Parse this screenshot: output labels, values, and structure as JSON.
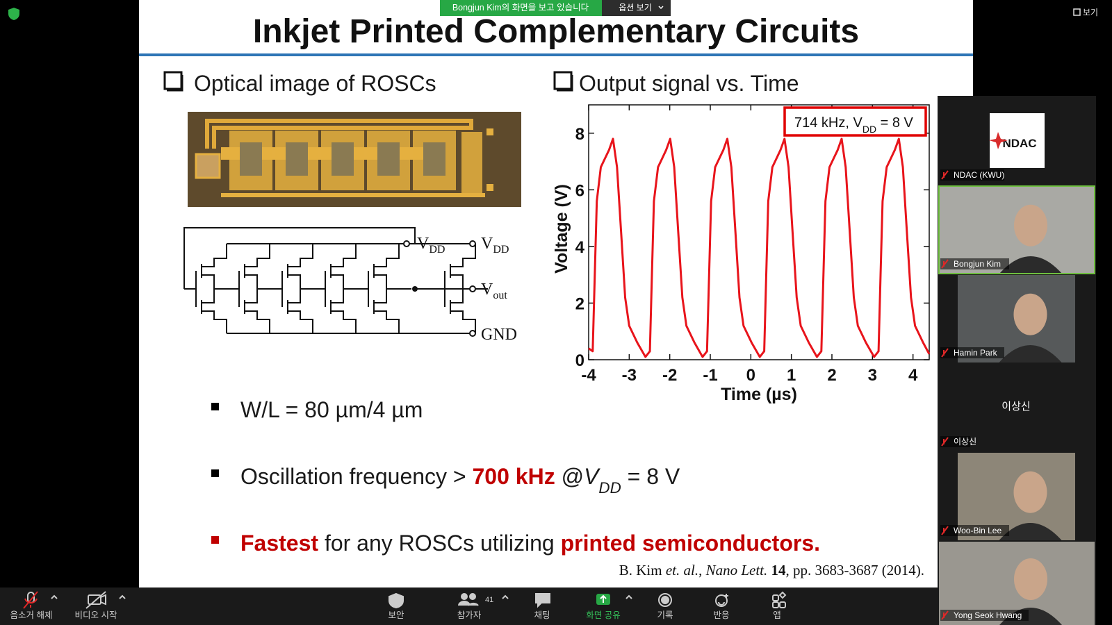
{
  "banner": {
    "sharing": "Bongjun  Kim의 화면을 보고 있습니다",
    "options": "옵션 보기"
  },
  "view_button": "보기",
  "slide": {
    "title": "Inkjet Printed Complementary Circuits",
    "section_left": "Optical image of ROSCs",
    "section_right": "Output signal vs. Time",
    "circuit_labels": {
      "vdd_node": "V",
      "vdd_node_sub": "DD",
      "vdd": "V",
      "vdd_sub": "DD",
      "vout": "V",
      "vout_sub": "out",
      "gnd": "GND"
    },
    "bullets": [
      {
        "marker_color": "#000000",
        "segments": [
          {
            "text": "W/L = 80 µm/4 µm",
            "color": "#1a1a1a"
          }
        ]
      },
      {
        "marker_color": "#000000",
        "segments": [
          {
            "text": "Oscillation frequency > ",
            "color": "#1a1a1a"
          },
          {
            "text": "700 kHz",
            "color": "#c00000",
            "bold": true
          },
          {
            "text": " @",
            "color": "#1a1a1a"
          },
          {
            "text": "V",
            "color": "#1a1a1a",
            "italic": true
          },
          {
            "text": "DD",
            "color": "#1a1a1a",
            "italic": true,
            "sub": true
          },
          {
            "text": " = 8 V",
            "color": "#1a1a1a"
          }
        ]
      },
      {
        "marker_color": "#c00000",
        "segments": [
          {
            "text": "Fastest",
            "color": "#c00000",
            "bold": true
          },
          {
            "text": " for any ROSCs utilizing ",
            "color": "#1a1a1a"
          },
          {
            "text": "printed semiconductors.",
            "color": "#c00000",
            "bold": true
          }
        ]
      }
    ],
    "citation": [
      {
        "text": "B. Kim "
      },
      {
        "text": "et. al.",
        "italic": true
      },
      {
        "text": ", "
      },
      {
        "text": "Nano Lett.",
        "italic": true
      },
      {
        "text": " "
      },
      {
        "text": "14",
        "bold": true
      },
      {
        "text": ", pp. 3683-3687 (2014)."
      }
    ]
  },
  "chart_data": {
    "type": "line",
    "x_label": "Time (µs)",
    "y_label": "Voltage (V)",
    "annotation": {
      "text": "714 kHz, V",
      "sub": "DD",
      "rest": " = 8 V",
      "color": "#e00000"
    },
    "xlim": [
      -4,
      4.4
    ],
    "ylim": [
      0,
      9
    ],
    "xticks": [
      -4,
      -3,
      -2,
      -1,
      0,
      1,
      2,
      3,
      4
    ],
    "yticks": [
      0,
      2,
      4,
      6,
      8
    ],
    "x": [
      -4.0,
      -3.9,
      -3.85,
      -3.8,
      -3.7,
      -3.6,
      -3.5,
      -3.4,
      -3.3,
      -3.2,
      -3.1,
      -3.0,
      -2.8,
      -2.6,
      -2.49,
      -2.44,
      -2.39,
      -2.29,
      -2.19,
      -2.09,
      -1.99,
      -1.89,
      -1.79,
      -1.69,
      -1.59,
      -1.39,
      -1.19,
      -1.08,
      -1.03,
      -0.98,
      -0.88,
      -0.78,
      -0.68,
      -0.58,
      -0.48,
      -0.38,
      -0.28,
      -0.18,
      0.02,
      0.22,
      0.33,
      0.38,
      0.43,
      0.53,
      0.63,
      0.73,
      0.83,
      0.93,
      1.03,
      1.13,
      1.23,
      1.43,
      1.63,
      1.74,
      1.79,
      1.84,
      1.94,
      2.04,
      2.14,
      2.24,
      2.34,
      2.44,
      2.54,
      2.64,
      2.84,
      3.04,
      3.15,
      3.2,
      3.25,
      3.35,
      3.45,
      3.55,
      3.65,
      3.75,
      3.85,
      3.95,
      4.05,
      4.25,
      4.4
    ],
    "series": [
      {
        "name": "Output",
        "color": "#e8141b",
        "values": [
          0.4,
          0.3,
          3,
          5.6,
          6.8,
          7.1,
          7.4,
          7.8,
          6.8,
          4.5,
          2.2,
          1.2,
          0.6,
          0.1,
          0.3,
          3,
          5.6,
          6.8,
          7.1,
          7.4,
          7.8,
          6.8,
          4.5,
          2.2,
          1.2,
          0.6,
          0.1,
          0.3,
          3,
          5.6,
          6.8,
          7.1,
          7.4,
          7.8,
          6.8,
          4.5,
          2.2,
          1.2,
          0.6,
          0.1,
          0.3,
          3,
          5.6,
          6.8,
          7.1,
          7.4,
          7.8,
          6.8,
          4.5,
          2.2,
          1.2,
          0.6,
          0.1,
          0.3,
          3,
          5.6,
          6.8,
          7.1,
          7.4,
          7.8,
          6.8,
          4.5,
          2.2,
          1.2,
          0.6,
          0.1,
          0.3,
          3,
          5.6,
          6.8,
          7.1,
          7.4,
          7.8,
          6.8,
          4.5,
          2.2,
          1.2,
          0.6,
          0.2
        ]
      }
    ]
  },
  "participants": [
    {
      "name": "NDAC (KWU)",
      "logo": "NDAC"
    },
    {
      "name": "Bongjun Kim"
    },
    {
      "name": "Hamin Park"
    },
    {
      "name": "이상신",
      "display": "이상신"
    },
    {
      "name": "Woo-Bin Lee"
    },
    {
      "name": "Yong Seok Hwang"
    }
  ],
  "toolbar": {
    "mute": "음소거 해제",
    "video": "비디오 시작",
    "security": "보안",
    "participants": "참가자",
    "participant_count": "41",
    "chat": "채팅",
    "share": "화면 공유",
    "record": "기록",
    "reactions": "반응",
    "apps": "앱"
  }
}
